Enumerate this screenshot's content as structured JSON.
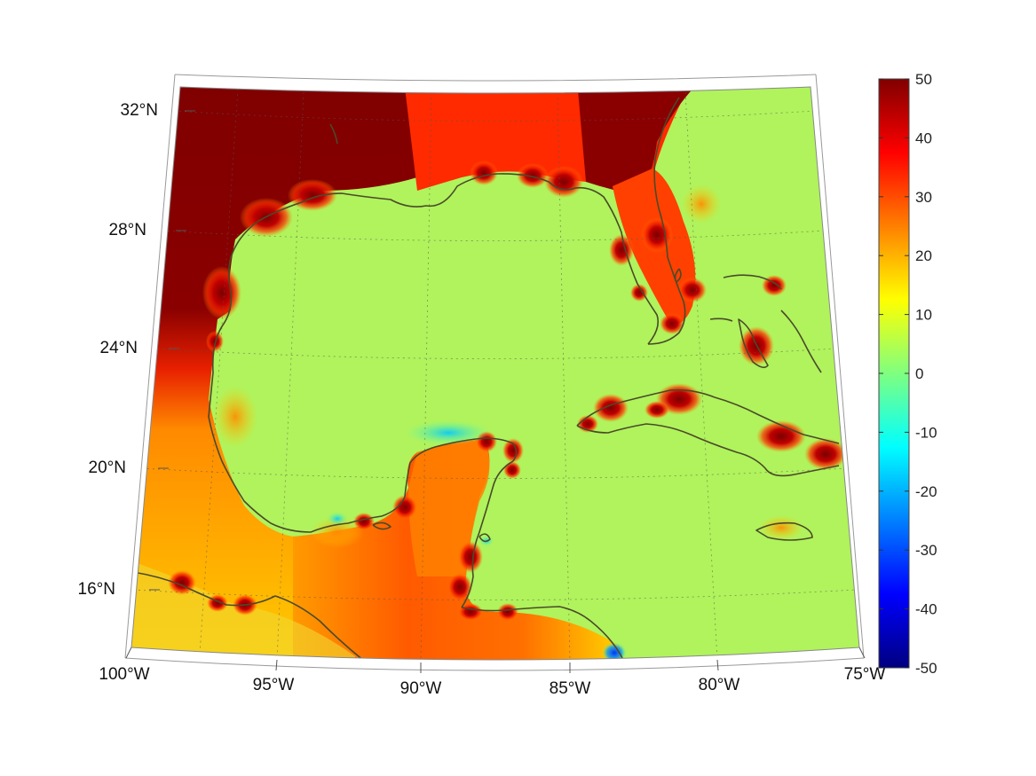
{
  "map": {
    "extent": {
      "lon_min": -100,
      "lon_max": -75,
      "lat_min": 14,
      "lat_max": 33
    },
    "lon_ticks": [
      {
        "lon": -100,
        "label": "100°W"
      },
      {
        "lon": -95,
        "label": "95°W"
      },
      {
        "lon": -90,
        "label": "90°W"
      },
      {
        "lon": -85,
        "label": "85°W"
      },
      {
        "lon": -80,
        "label": "80°W"
      },
      {
        "lon": -75,
        "label": "75°W"
      }
    ],
    "lat_ticks": [
      {
        "lat": 16,
        "label": "16°N"
      },
      {
        "lat": 20,
        "label": "20°N"
      },
      {
        "lat": 24,
        "label": "24°N"
      },
      {
        "lat": 28,
        "label": "28°N"
      },
      {
        "lat": 32,
        "label": "32°N"
      }
    ],
    "coastline_color": "#4a4a2a",
    "grid": "dotted"
  },
  "colorbar": {
    "min": -50,
    "max": 50,
    "colormap": "jet",
    "ticks": [
      {
        "value": 50,
        "label": "50"
      },
      {
        "value": 40,
        "label": "40"
      },
      {
        "value": 30,
        "label": "30"
      },
      {
        "value": 20,
        "label": "20"
      },
      {
        "value": 10,
        "label": "10"
      },
      {
        "value": 0,
        "label": "0"
      },
      {
        "value": -10,
        "label": "-10"
      },
      {
        "value": -20,
        "label": "-20"
      },
      {
        "value": -30,
        "label": "-30"
      },
      {
        "value": -40,
        "label": "-40"
      },
      {
        "value": -50,
        "label": "-50"
      }
    ]
  }
}
